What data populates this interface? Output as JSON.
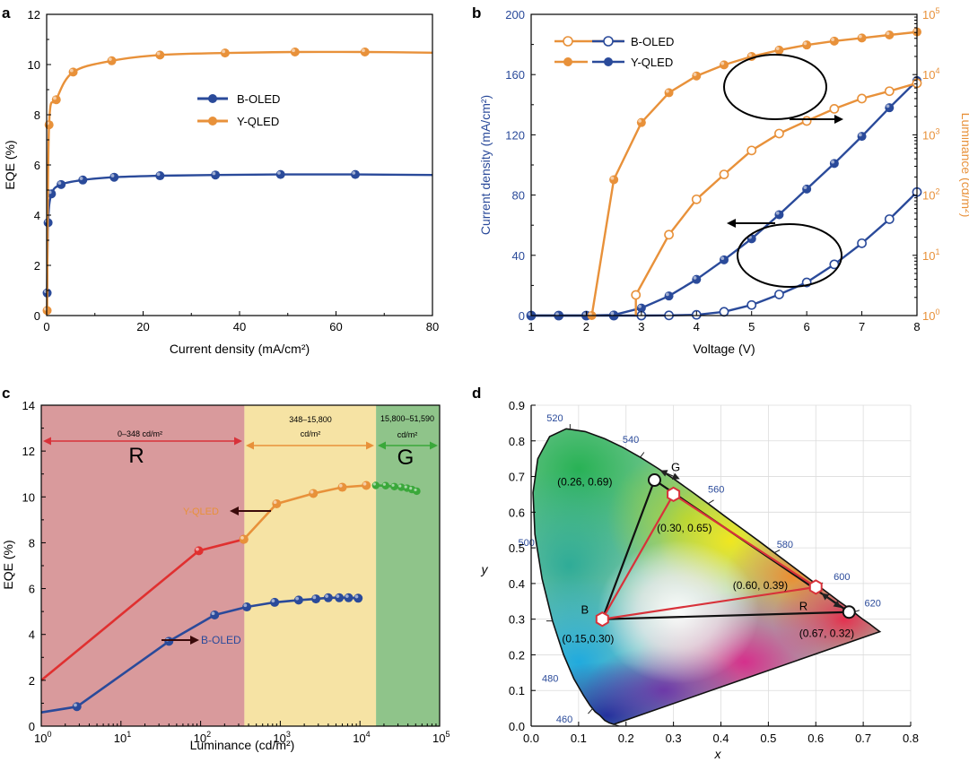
{
  "panels": {
    "a": {
      "letter": "a",
      "xlabel": "Current density (mA/cm²)",
      "ylabel": "EQE (%)",
      "xticks": [
        "0",
        "20",
        "40",
        "60",
        "80"
      ],
      "yticks": [
        "0",
        "2",
        "4",
        "6",
        "8",
        "10",
        "12"
      ],
      "legend": [
        "B-OLED",
        "Y-QLED"
      ]
    },
    "b": {
      "letter": "b",
      "xlabel": "Voltage (V)",
      "ylabel_left": "Current density (mA/cm²)",
      "ylabel_right": "Luminance (cd/m²)",
      "xticks": [
        "1",
        "2",
        "3",
        "4",
        "5",
        "6",
        "7",
        "8"
      ],
      "yticks_left": [
        "0",
        "40",
        "80",
        "120",
        "160",
        "200"
      ],
      "yticks_right": [
        "10",
        "10",
        "10",
        "10",
        "10",
        "10"
      ],
      "yticks_right_exp": [
        "0",
        "1",
        "2",
        "3",
        "4",
        "5"
      ],
      "legend": [
        "B-OLED",
        "Y-QLED"
      ]
    },
    "c": {
      "letter": "c",
      "xlabel": "Luminance (cd/m²)",
      "ylabel": "EQE (%)",
      "xticks": [
        "10",
        "10",
        "10",
        "10",
        "10",
        "10"
      ],
      "xticks_exp": [
        "0",
        "1",
        "2",
        "3",
        "4",
        "5"
      ],
      "yticks": [
        "0",
        "2",
        "4",
        "6",
        "8",
        "10",
        "12",
        "14"
      ],
      "region_r_range": "0–348 cd/m²",
      "region_y_range_1": "348–15,800",
      "region_y_range_2": "cd/m²",
      "region_g_range_1": "15,800–51,590",
      "region_g_range_2": "cd/m²",
      "region_r_letter": "R",
      "region_g_letter": "G",
      "label_y": "Y-QLED",
      "label_b": "B-OLED"
    },
    "d": {
      "letter": "d",
      "xlabel": "x",
      "ylabel": "y",
      "xticks": [
        "0.0",
        "0.1",
        "0.2",
        "0.3",
        "0.4",
        "0.5",
        "0.6",
        "0.7",
        "0.8"
      ],
      "yticks": [
        "0.0",
        "0.1",
        "0.2",
        "0.3",
        "0.4",
        "0.5",
        "0.6",
        "0.7",
        "0.8",
        "0.9"
      ],
      "wavelengths": [
        "460",
        "480",
        "500",
        "520",
        "540",
        "560",
        "580",
        "600",
        "620"
      ],
      "label_g": "G",
      "label_b": "B",
      "label_r": "R",
      "coord_g1": "(0.26, 0.69)",
      "coord_g2": "(0.30, 0.65)",
      "coord_r1": "(0.60, 0.39)",
      "coord_r2": "(0.67, 0.32)",
      "coord_b": "(0.15,0.30)"
    }
  },
  "colors": {
    "blue": "#2a4a9a",
    "orange": "#e8913a",
    "red": "#e03030",
    "green": "#3aa83a",
    "black": "#000000"
  },
  "chart_data": [
    {
      "panel": "a",
      "type": "line",
      "xlabel": "Current density (mA/cm²)",
      "ylabel": "EQE (%)",
      "xlim": [
        0,
        80
      ],
      "ylim": [
        0,
        12
      ],
      "series": [
        {
          "name": "B-OLED",
          "x": [
            0.1,
            0.3,
            1,
            3,
            7.5,
            14,
            23.5,
            35,
            48.5,
            64,
            80
          ],
          "y": [
            0.9,
            3.7,
            4.85,
            5.22,
            5.4,
            5.51,
            5.57,
            5.6,
            5.62,
            5.62,
            5.6
          ]
        },
        {
          "name": "Y-QLED",
          "x": [
            0.1,
            0.5,
            2,
            5.5,
            13.5,
            23.5,
            37,
            51.5,
            66,
            80
          ],
          "y": [
            0.2,
            7.6,
            8.6,
            9.7,
            10.15,
            10.38,
            10.46,
            10.5,
            10.5,
            10.47
          ]
        }
      ]
    },
    {
      "panel": "b",
      "type": "line",
      "xlabel": "Voltage (V)",
      "ylabel": "Current density (mA/cm²)",
      "y2label": "Luminance (cd/m²)",
      "xlim": [
        1,
        8
      ],
      "ylim": [
        0,
        200
      ],
      "y2lim": [
        1,
        100000
      ],
      "y2scale": "log",
      "series": [
        {
          "name": "B-OLED current density",
          "axis": "left",
          "marker": "open",
          "x": [
            1,
            1.5,
            2,
            2.5,
            3,
            3.5,
            4,
            4.5,
            5,
            5.5,
            6,
            6.5,
            7,
            7.5,
            8
          ],
          "y": [
            0,
            0,
            0,
            0,
            0,
            0.1,
            0.5,
            2.5,
            7,
            14,
            22,
            34,
            48,
            64,
            82
          ]
        },
        {
          "name": "Y-QLED current density",
          "axis": "left",
          "marker": "filled",
          "x": [
            1,
            1.5,
            2,
            2.5,
            3,
            3.5,
            4,
            4.5,
            5,
            5.5,
            6,
            6.5,
            7,
            7.5,
            8
          ],
          "y": [
            0,
            0,
            0,
            0.4,
            5,
            13,
            24,
            37,
            51,
            67,
            84,
            101,
            119,
            138,
            156
          ]
        },
        {
          "name": "B-OLED luminance",
          "axis": "right",
          "marker": "open",
          "x": [
            2.9,
            3.5,
            4,
            4.5,
            5,
            5.5,
            6,
            6.5,
            7,
            7.5,
            8
          ],
          "y": [
            2.2,
            22,
            85,
            220,
            550,
            1050,
            1700,
            2700,
            4000,
            5300,
            7200
          ]
        },
        {
          "name": "Y-QLED luminance",
          "axis": "right",
          "marker": "filled",
          "x": [
            2.1,
            2.5,
            3,
            3.5,
            4,
            4.5,
            5,
            5.5,
            6,
            6.5,
            7,
            7.5,
            8
          ],
          "y": [
            1,
            180,
            1600,
            5000,
            9500,
            14500,
            20000,
            25500,
            31000,
            36000,
            40500,
            45500,
            51000
          ]
        }
      ]
    },
    {
      "panel": "c",
      "type": "line",
      "xlabel": "Luminance (cd/m²)",
      "ylabel": "EQE (%)",
      "xscale": "log",
      "xlim": [
        1,
        100000
      ],
      "ylim": [
        0,
        14
      ],
      "series": [
        {
          "name": "B-OLED",
          "x": [
            1,
            2.8,
            40,
            150,
            380,
            850,
            1700,
            2800,
            4000,
            5500,
            7200,
            9500
          ],
          "y": [
            0.6,
            0.85,
            3.7,
            4.85,
            5.2,
            5.4,
            5.5,
            5.55,
            5.6,
            5.6,
            5.6,
            5.58
          ]
        },
        {
          "name": "Y-QLED (R)",
          "x": [
            1,
            95,
            348
          ],
          "y": [
            2.0,
            7.65,
            8.15
          ]
        },
        {
          "name": "Y-QLED (Y)",
          "x": [
            348,
            900,
            2600,
            6000,
            12000
          ],
          "y": [
            8.15,
            9.7,
            10.15,
            10.42,
            10.5
          ]
        },
        {
          "name": "Y-QLED (G)",
          "x": [
            15800,
            21000,
            27000,
            33000,
            39000,
            45000,
            51590
          ],
          "y": [
            10.5,
            10.49,
            10.45,
            10.42,
            10.38,
            10.32,
            10.25
          ]
        }
      ]
    },
    {
      "panel": "d",
      "type": "scatter",
      "xlabel": "x",
      "ylabel": "y",
      "xlim": [
        0,
        0.8
      ],
      "ylim": [
        0,
        0.9
      ],
      "points": [
        {
          "label": "(0.26, 0.69)",
          "x": 0.26,
          "y": 0.69,
          "marker": "circle"
        },
        {
          "label": "(0.30, 0.65)",
          "x": 0.3,
          "y": 0.65,
          "marker": "hexagon"
        },
        {
          "label": "(0.60, 0.39)",
          "x": 0.6,
          "y": 0.39,
          "marker": "hexagon"
        },
        {
          "label": "(0.67, 0.32)",
          "x": 0.67,
          "y": 0.32,
          "marker": "circle"
        },
        {
          "label": "(0.15,0.30)",
          "x": 0.15,
          "y": 0.3,
          "marker": "hexagon"
        }
      ]
    }
  ]
}
